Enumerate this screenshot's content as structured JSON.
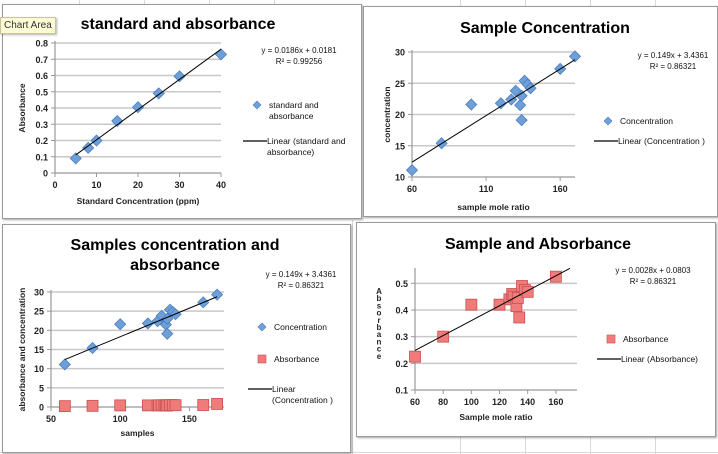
{
  "tooltip": "Chart Area",
  "colors": {
    "blue": "#6f9fd8",
    "blue_edge": "#4a7fbf",
    "red": "#ef7b7b",
    "red_edge": "#c85050",
    "grid": "#c8c8c8",
    "trend": "#000000"
  },
  "chart_data": [
    {
      "id": "c1",
      "type": "scatter",
      "title": [
        "standard and absorbance"
      ],
      "xlabel": "Standard Concentration (ppm)",
      "ylabel": "Absorbance",
      "xlim": [
        0,
        40
      ],
      "ylim": [
        0,
        0.8
      ],
      "xticks": [
        0,
        10,
        20,
        30,
        40
      ],
      "yticks": [
        0,
        0.1,
        0.2,
        0.3,
        0.4,
        0.5,
        0.6,
        0.7,
        0.8
      ],
      "grid": true,
      "equation": [
        "y = 0.0186x + 0.0181",
        "R² = 0.99256"
      ],
      "series": [
        {
          "name": "standard and absorbance",
          "marker": "diamond",
          "color": "blue",
          "x": [
            5,
            8,
            10,
            15,
            20,
            25,
            30,
            40
          ],
          "y": [
            0.09,
            0.155,
            0.2,
            0.32,
            0.405,
            0.49,
            0.595,
            0.73
          ]
        }
      ],
      "trendline": {
        "name": "Linear (standard and absorbance)",
        "slope": 0.0186,
        "intercept": 0.0181,
        "x": [
          5,
          40
        ]
      },
      "legend": [
        {
          "type": "marker",
          "marker": "diamond",
          "color": "blue",
          "label": [
            "standard and",
            "absorbance"
          ]
        },
        {
          "type": "line",
          "label": [
            "Linear (standard and",
            "absorbance)"
          ]
        }
      ],
      "legend_position": "right"
    },
    {
      "id": "c2",
      "type": "scatter",
      "title": [
        "Sample Concentration"
      ],
      "xlabel": "sample mole ratio",
      "ylabel": "concentration",
      "xlim": [
        60,
        170
      ],
      "ylim": [
        10,
        30
      ],
      "xticks": [
        60,
        110,
        160
      ],
      "yticks": [
        10,
        15,
        20,
        25,
        30
      ],
      "grid": true,
      "equation": [
        "y = 0.149x + 3.4361",
        "R² = 0.86321"
      ],
      "series": [
        {
          "name": "Concentration",
          "marker": "diamond",
          "color": "blue",
          "x": [
            60,
            80,
            100,
            120,
            127,
            130,
            133,
            134,
            134,
            136,
            138,
            140,
            160,
            170
          ],
          "y": [
            11.1,
            15.4,
            21.6,
            21.8,
            22.4,
            23.8,
            21.5,
            23.0,
            19.1,
            25.4,
            24.8,
            24.2,
            27.3,
            29.3
          ]
        }
      ],
      "trendline": {
        "name": "Linear (Concentration )",
        "slope": 0.149,
        "intercept": 3.4361,
        "x": [
          60,
          170
        ]
      },
      "legend": [
        {
          "type": "marker",
          "marker": "diamond",
          "color": "blue",
          "label": [
            "Concentration"
          ]
        },
        {
          "type": "line",
          "label": [
            "Linear (Concentration )"
          ]
        }
      ],
      "legend_position": "right"
    },
    {
      "id": "c3",
      "type": "scatter",
      "title": [
        "Samples concentration and",
        "absorbance"
      ],
      "xlabel": "samples",
      "ylabel": "absorbance and concentration",
      "xlim": [
        50,
        175
      ],
      "ylim": [
        0,
        30
      ],
      "xticks": [
        50,
        100,
        150
      ],
      "yticks": [
        0,
        5,
        10,
        15,
        20,
        25,
        30
      ],
      "grid": true,
      "equation": [
        "y = 0.149x + 3.4361",
        "R² = 0.86321"
      ],
      "series": [
        {
          "name": "Concentration",
          "marker": "diamond",
          "color": "blue",
          "x": [
            60,
            80,
            100,
            120,
            127,
            130,
            133,
            134,
            134,
            136,
            138,
            140,
            160,
            170
          ],
          "y": [
            11.1,
            15.4,
            21.6,
            21.8,
            22.4,
            23.8,
            21.5,
            23.0,
            19.1,
            25.4,
            24.8,
            24.2,
            27.3,
            29.3
          ]
        },
        {
          "name": "Absorbance",
          "marker": "square",
          "color": "red",
          "x": [
            60,
            80,
            100,
            120,
            127,
            128,
            130,
            132,
            133,
            134,
            136,
            138,
            140,
            160,
            170
          ],
          "y": [
            0.22,
            0.3,
            0.42,
            0.42,
            0.44,
            0.43,
            0.46,
            0.41,
            0.45,
            0.37,
            0.49,
            0.48,
            0.47,
            0.52,
            0.8
          ]
        }
      ],
      "trendline": {
        "name": "Linear (Concentration )",
        "slope": 0.149,
        "intercept": 3.4361,
        "x": [
          60,
          170
        ]
      },
      "legend": [
        {
          "type": "marker",
          "marker": "diamond",
          "color": "blue",
          "label": [
            "Concentration"
          ]
        },
        {
          "type": "marker",
          "marker": "square",
          "color": "red",
          "label": [
            "Absorbance"
          ]
        },
        {
          "type": "line",
          "label": [
            "Linear",
            "(Concentration )"
          ]
        }
      ],
      "legend_position": "right"
    },
    {
      "id": "c4",
      "type": "scatter",
      "title": [
        "Sample and Absorbance"
      ],
      "xlabel": "Sample mole ratio",
      "ylabel": "Absorbance",
      "ylabel_stacked": true,
      "xlim": [
        60,
        175
      ],
      "ylim": [
        0.1,
        0.55
      ],
      "xticks": [
        60,
        80,
        100,
        120,
        140,
        160
      ],
      "yticks": [
        0.1,
        0.2,
        0.3,
        0.4,
        0.5
      ],
      "grid": true,
      "equation": [
        "y = 0.0028x + 0.0803",
        "R² = 0.86321"
      ],
      "series": [
        {
          "name": "Absorbance",
          "marker": "square",
          "color": "red",
          "x": [
            60,
            80,
            100,
            120,
            127,
            129,
            130,
            132,
            133,
            134,
            136,
            138,
            140,
            160
          ],
          "y": [
            0.225,
            0.3,
            0.42,
            0.42,
            0.44,
            0.46,
            0.45,
            0.415,
            0.445,
            0.372,
            0.49,
            0.475,
            0.468,
            0.525
          ]
        }
      ],
      "trendline": {
        "name": "Linear (Absorbance)",
        "slope": 0.0028,
        "intercept": 0.0803,
        "x": [
          60,
          170
        ]
      },
      "legend": [
        {
          "type": "marker",
          "marker": "square",
          "color": "red",
          "label": [
            "Absorbance"
          ]
        },
        {
          "type": "line",
          "label": [
            "Linear (Absorbance)"
          ]
        }
      ],
      "legend_position": "right"
    }
  ]
}
